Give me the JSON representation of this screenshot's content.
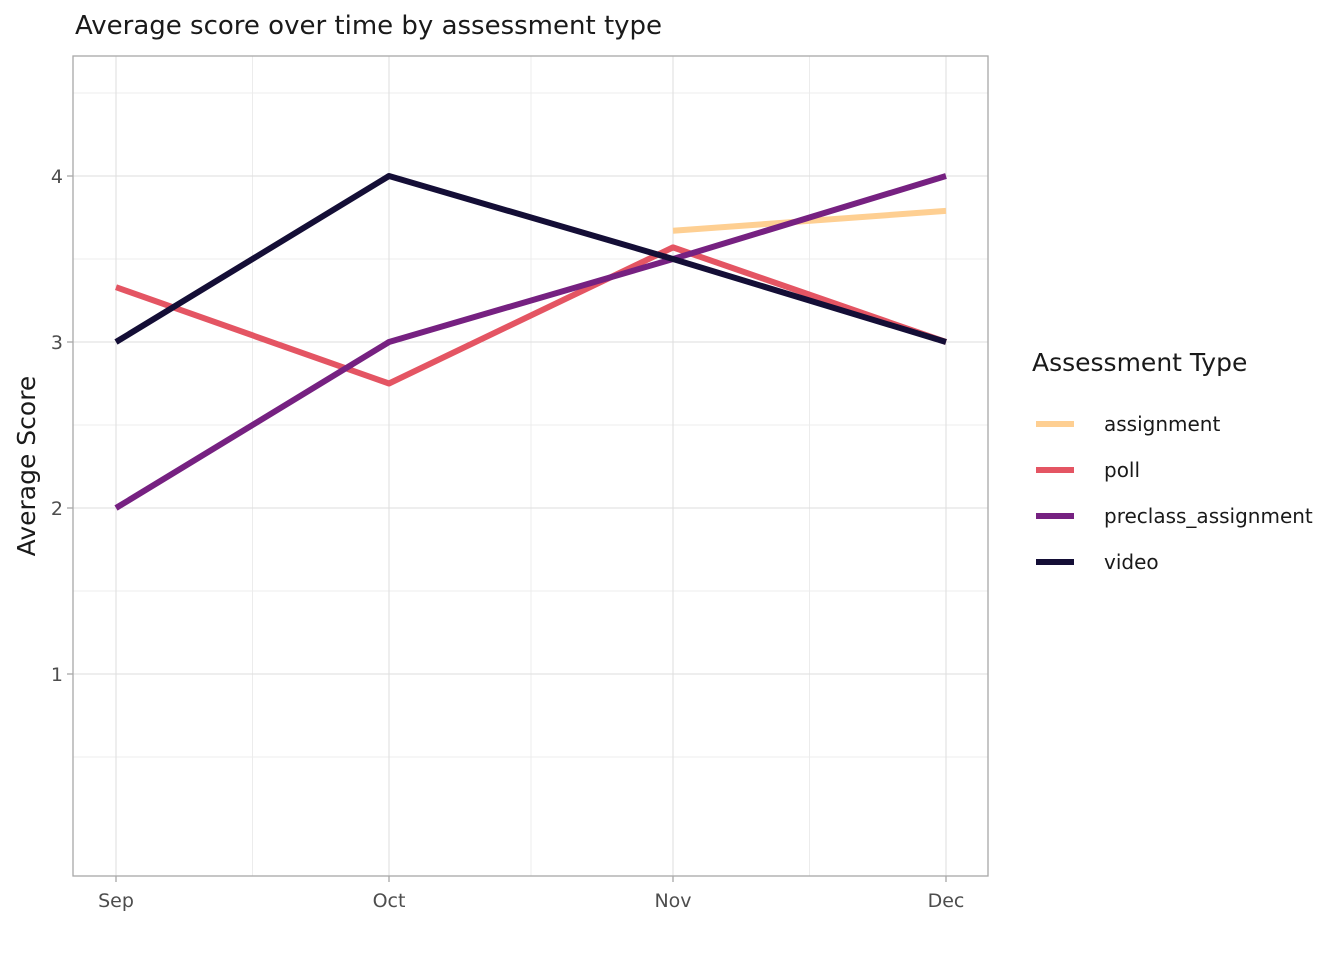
{
  "chart_data": {
    "type": "line",
    "title": "Average score over time by assessment type",
    "xlabel": "",
    "ylabel": "Average Score",
    "categories": [
      "Sep",
      "Oct",
      "Nov",
      "Dec"
    ],
    "x_ticks": [
      "Sep",
      "Oct",
      "Nov",
      "Dec"
    ],
    "y_ticks": [
      1,
      2,
      3,
      4
    ],
    "ylim": [
      0.0,
      4.7
    ],
    "grid": true,
    "legend": {
      "title": "Assessment Type",
      "placement": "right"
    },
    "series": [
      {
        "name": "assignment",
        "color": "#fecf92",
        "points": [
          {
            "x": "Nov",
            "y": 3.67
          },
          {
            "x": "Dec",
            "y": 3.79
          }
        ]
      },
      {
        "name": "poll",
        "color": "#e45563",
        "points": [
          {
            "x": "Sep",
            "y": 3.33
          },
          {
            "x": "Oct",
            "y": 2.75
          },
          {
            "x": "Nov",
            "y": 3.57
          },
          {
            "x": "Dec",
            "y": 3.0
          }
        ]
      },
      {
        "name": "preclass_assignment",
        "color": "#762181",
        "points": [
          {
            "x": "Sep",
            "y": 2.0
          },
          {
            "x": "Oct",
            "y": 3.0
          },
          {
            "x": "Nov",
            "y": 3.5
          },
          {
            "x": "Dec",
            "y": 4.0
          }
        ]
      },
      {
        "name": "video",
        "color": "#140e36",
        "points": [
          {
            "x": "Sep",
            "y": 3.0
          },
          {
            "x": "Oct",
            "y": 4.0
          },
          {
            "x": "Nov",
            "y": 3.5
          },
          {
            "x": "Dec",
            "y": 3.0
          }
        ]
      }
    ]
  }
}
